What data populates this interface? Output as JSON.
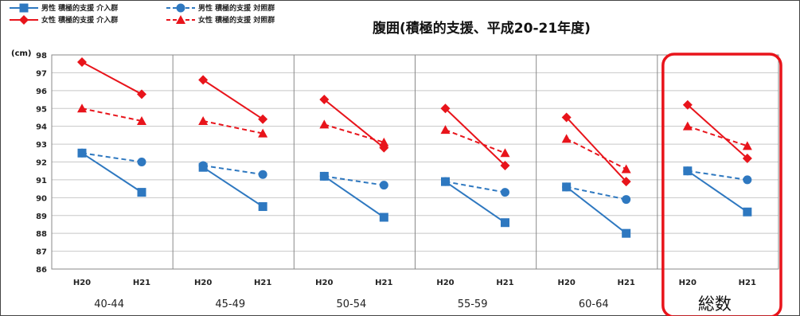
{
  "chart_data": {
    "type": "line",
    "title": "腹囲(積極的支援、平成20-21年度)",
    "unit_label": "(cm)",
    "ylim": [
      86,
      98
    ],
    "yticks": [
      86,
      87,
      88,
      89,
      90,
      91,
      92,
      93,
      94,
      95,
      96,
      97,
      98
    ],
    "grid": true,
    "legend_position": "top-left",
    "x": [
      "H20",
      "H21"
    ],
    "groups": [
      "40-44",
      "45-49",
      "50-54",
      "55-59",
      "60-64",
      "総数"
    ],
    "highlighted_group": "総数",
    "highlight_color": "#e8141b",
    "series": [
      {
        "name": "男性 積極的支援 介入群",
        "color": "#2e78c0",
        "dashed": false,
        "marker": "square",
        "values": [
          [
            92.5,
            90.3
          ],
          [
            91.7,
            89.5
          ],
          [
            91.2,
            88.9
          ],
          [
            90.9,
            88.6
          ],
          [
            90.6,
            88.0
          ],
          [
            91.5,
            89.2
          ]
        ]
      },
      {
        "name": "男性 積極的支援 対照群",
        "color": "#2e78c0",
        "dashed": true,
        "marker": "circle",
        "values": [
          [
            92.5,
            92.0
          ],
          [
            91.8,
            91.3
          ],
          [
            91.2,
            90.7
          ],
          [
            90.9,
            90.3
          ],
          [
            90.6,
            89.9
          ],
          [
            91.5,
            91.0
          ]
        ]
      },
      {
        "name": "女性 積極的支援 介入群",
        "color": "#e8141b",
        "dashed": false,
        "marker": "diamond",
        "values": [
          [
            97.6,
            95.8
          ],
          [
            96.6,
            94.4
          ],
          [
            95.5,
            92.8
          ],
          [
            95.0,
            91.8
          ],
          [
            94.5,
            90.9
          ],
          [
            95.2,
            92.2
          ]
        ]
      },
      {
        "name": "女性 積極的支援 対照群",
        "color": "#e8141b",
        "dashed": true,
        "marker": "triangle",
        "values": [
          [
            95.0,
            94.3
          ],
          [
            94.3,
            93.6
          ],
          [
            94.1,
            93.1
          ],
          [
            93.8,
            92.5
          ],
          [
            93.3,
            91.6
          ],
          [
            94.0,
            92.9
          ]
        ]
      }
    ]
  }
}
